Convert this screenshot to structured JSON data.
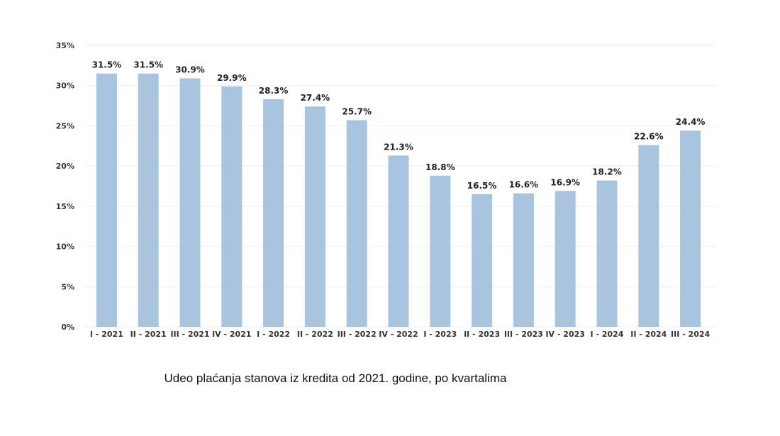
{
  "caption": "Udeo plaćanja stanova iz kredita od 2021. godine, po kvartalima",
  "colors": {
    "bar": "#a8c4de",
    "grid": "#eeeeee",
    "axis_text": "#333333",
    "label_text": "#222222"
  },
  "chart_data": {
    "type": "bar",
    "title": "",
    "xlabel": "",
    "ylabel": "",
    "categories": [
      "I - 2021",
      "II - 2021",
      "III - 2021",
      "IV - 2021",
      "I - 2022",
      "II - 2022",
      "III - 2022",
      "IV - 2022",
      "I - 2023",
      "II - 2023",
      "III - 2023",
      "IV - 2023",
      "I - 2024",
      "II - 2024",
      "III - 2024"
    ],
    "values": [
      31.5,
      31.5,
      30.9,
      29.9,
      28.3,
      27.4,
      25.7,
      21.3,
      18.8,
      16.5,
      16.6,
      16.9,
      18.2,
      22.6,
      24.4
    ],
    "data_labels": [
      "31.5%",
      "31.5%",
      "30.9%",
      "29.9%",
      "28.3%",
      "27.4%",
      "25.7%",
      "21.3%",
      "18.8%",
      "16.5%",
      "16.6%",
      "16.9%",
      "18.2%",
      "22.6%",
      "24.4%"
    ],
    "ylim": [
      0,
      35
    ],
    "yticks": [
      0,
      5,
      10,
      15,
      20,
      25,
      30,
      35
    ],
    "ytick_labels": [
      "0%",
      "5%",
      "10%",
      "15%",
      "20%",
      "25%",
      "30%",
      "35%"
    ],
    "grid": true,
    "legend": "none"
  }
}
